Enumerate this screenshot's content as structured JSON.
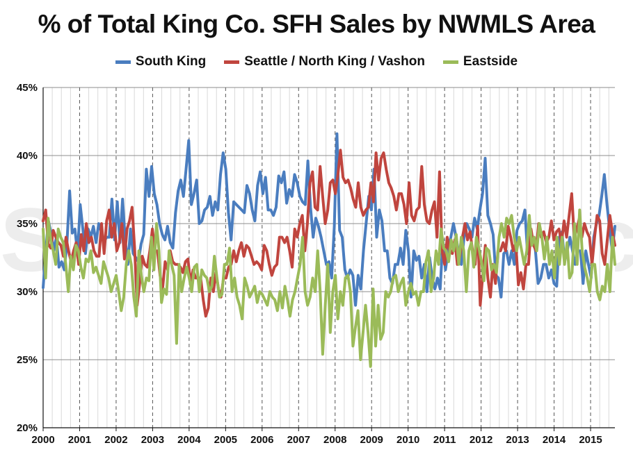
{
  "chart_data": {
    "type": "line",
    "title": "% of Total King Co. SFH Sales by NWMLS Area",
    "xlabel": "",
    "ylabel": "",
    "ylim": [
      0.2,
      0.45
    ],
    "y_ticks": [
      "20%",
      "25%",
      "30%",
      "35%",
      "40%",
      "45%"
    ],
    "y_tick_values": [
      0.2,
      0.25,
      0.3,
      0.35,
      0.4,
      0.45
    ],
    "x_ticks": [
      "2000",
      "2001",
      "2002",
      "2003",
      "2004",
      "2005",
      "2006",
      "2007",
      "2008",
      "2009",
      "2010",
      "2011",
      "2012",
      "2013",
      "2014",
      "2015"
    ],
    "x_range": [
      "2000-01",
      "2015-08"
    ],
    "frequency": "monthly",
    "grid": true,
    "legend_position": "top",
    "watermark": "SeattleBubble.com",
    "series": [
      {
        "name": "South King",
        "color": "#4a7dbf",
        "values": [
          0.303,
          0.33,
          0.352,
          0.343,
          0.33,
          0.34,
          0.318,
          0.322,
          0.316,
          0.336,
          0.374,
          0.343,
          0.346,
          0.328,
          0.364,
          0.346,
          0.328,
          0.346,
          0.34,
          0.348,
          0.336,
          0.35,
          0.344,
          0.337,
          0.34,
          0.34,
          0.368,
          0.338,
          0.366,
          0.336,
          0.368,
          0.338,
          0.32,
          0.346,
          0.328,
          0.325,
          0.322,
          0.335,
          0.342,
          0.39,
          0.37,
          0.392,
          0.372,
          0.364,
          0.35,
          0.342,
          0.338,
          0.348,
          0.336,
          0.332,
          0.358,
          0.374,
          0.382,
          0.37,
          0.39,
          0.411,
          0.364,
          0.372,
          0.382,
          0.35,
          0.352,
          0.36,
          0.362,
          0.37,
          0.356,
          0.366,
          0.36,
          0.386,
          0.402,
          0.39,
          0.358,
          0.338,
          0.366,
          0.364,
          0.362,
          0.36,
          0.358,
          0.378,
          0.372,
          0.36,
          0.352,
          0.378,
          0.388,
          0.372,
          0.384,
          0.36,
          0.36,
          0.356,
          0.362,
          0.385,
          0.38,
          0.388,
          0.365,
          0.375,
          0.37,
          0.386,
          0.38,
          0.37,
          0.366,
          0.364,
          0.396,
          0.362,
          0.34,
          0.354,
          0.348,
          0.34,
          0.33,
          0.32,
          0.322,
          0.31,
          0.348,
          0.416,
          0.345,
          0.34,
          0.316,
          0.31,
          0.316,
          0.312,
          0.29,
          0.312,
          0.302,
          0.33,
          0.35,
          0.37,
          0.36,
          0.39,
          0.34,
          0.36,
          0.352,
          0.33,
          0.33,
          0.31,
          0.306,
          0.32,
          0.32,
          0.332,
          0.32,
          0.345,
          0.33,
          0.296,
          0.33,
          0.323,
          0.326,
          0.31,
          0.32,
          0.3,
          0.325,
          0.31,
          0.302,
          0.31,
          0.302,
          0.338,
          0.316,
          0.33,
          0.34,
          0.35,
          0.34,
          0.328,
          0.32,
          0.34,
          0.35,
          0.346,
          0.34,
          0.354,
          0.346,
          0.36,
          0.372,
          0.398,
          0.356,
          0.35,
          0.342,
          0.312,
          0.31,
          0.296,
          0.328,
          0.33,
          0.32,
          0.33,
          0.32,
          0.345,
          0.35,
          0.352,
          0.36,
          0.328,
          0.34,
          0.34,
          0.33,
          0.306,
          0.31,
          0.32,
          0.32,
          0.31,
          0.316,
          0.306,
          0.304,
          0.34,
          0.344,
          0.322,
          0.33,
          0.34,
          0.33,
          0.32,
          0.33,
          0.33,
          0.306,
          0.33,
          0.32,
          0.31,
          0.34,
          0.35,
          0.356,
          0.37,
          0.386,
          0.364,
          0.346,
          0.33,
          0.348
        ]
      },
      {
        "name": "Seattle / North King / Vashon",
        "color": "#c0453e",
        "values": [
          0.352,
          0.36,
          0.335,
          0.332,
          0.345,
          0.34,
          0.336,
          0.334,
          0.326,
          0.34,
          0.33,
          0.322,
          0.33,
          0.336,
          0.32,
          0.342,
          0.33,
          0.35,
          0.336,
          0.34,
          0.33,
          0.326,
          0.326,
          0.35,
          0.328,
          0.352,
          0.36,
          0.34,
          0.35,
          0.33,
          0.336,
          0.35,
          0.324,
          0.346,
          0.352,
          0.362,
          0.332,
          0.29,
          0.306,
          0.326,
          0.32,
          0.318,
          0.33,
          0.346,
          0.33,
          0.33,
          0.312,
          0.302,
          0.322,
          0.316,
          0.33,
          0.322,
          0.32,
          0.32,
          0.318,
          0.314,
          0.322,
          0.324,
          0.306,
          0.316,
          0.31,
          0.31,
          0.31,
          0.294,
          0.282,
          0.288,
          0.31,
          0.3,
          0.314,
          0.302,
          0.296,
          0.31,
          0.31,
          0.318,
          0.32,
          0.33,
          0.322,
          0.33,
          0.336,
          0.326,
          0.334,
          0.332,
          0.326,
          0.32,
          0.322,
          0.32,
          0.316,
          0.334,
          0.33,
          0.32,
          0.312,
          0.318,
          0.32,
          0.34,
          0.34,
          0.336,
          0.34,
          0.33,
          0.318,
          0.346,
          0.34,
          0.35,
          0.356,
          0.33,
          0.35,
          0.38,
          0.388,
          0.362,
          0.36,
          0.392,
          0.37,
          0.35,
          0.36,
          0.38,
          0.382,
          0.372,
          0.386,
          0.404,
          0.384,
          0.38,
          0.382,
          0.376,
          0.368,
          0.362,
          0.38,
          0.362,
          0.356,
          0.36,
          0.362,
          0.38,
          0.366,
          0.402,
          0.382,
          0.398,
          0.402,
          0.39,
          0.38,
          0.376,
          0.37,
          0.36,
          0.372,
          0.372,
          0.364,
          0.35,
          0.38,
          0.356,
          0.352,
          0.36,
          0.362,
          0.392,
          0.364,
          0.352,
          0.35,
          0.36,
          0.366,
          0.34,
          0.388,
          0.33,
          0.32,
          0.34,
          0.33,
          0.328,
          0.338,
          0.32,
          0.326,
          0.34,
          0.35,
          0.338,
          0.344,
          0.33,
          0.32,
          0.348,
          0.29,
          0.312,
          0.334,
          0.31,
          0.296,
          0.32,
          0.306,
          0.33,
          0.33,
          0.336,
          0.33,
          0.348,
          0.34,
          0.33,
          0.336,
          0.305,
          0.314,
          0.302,
          0.32,
          0.32,
          0.346,
          0.334,
          0.33,
          0.35,
          0.34,
          0.344,
          0.336,
          0.34,
          0.352,
          0.338,
          0.344,
          0.346,
          0.336,
          0.352,
          0.34,
          0.356,
          0.372,
          0.34,
          0.346,
          0.354,
          0.34,
          0.35,
          0.344,
          0.34,
          0.32,
          0.34,
          0.356,
          0.352,
          0.328,
          0.32,
          0.338,
          0.356,
          0.344,
          0.334
        ]
      },
      {
        "name": "Eastside",
        "color": "#9bbb59",
        "values": [
          0.346,
          0.31,
          0.354,
          0.338,
          0.33,
          0.32,
          0.346,
          0.34,
          0.336,
          0.32,
          0.3,
          0.326,
          0.316,
          0.334,
          0.33,
          0.318,
          0.31,
          0.324,
          0.322,
          0.33,
          0.314,
          0.318,
          0.312,
          0.306,
          0.322,
          0.316,
          0.31,
          0.3,
          0.306,
          0.312,
          0.3,
          0.286,
          0.296,
          0.32,
          0.33,
          0.32,
          0.296,
          0.282,
          0.33,
          0.312,
          0.3,
          0.31,
          0.308,
          0.34,
          0.316,
          0.35,
          0.33,
          0.292,
          0.302,
          0.298,
          0.33,
          0.32,
          0.312,
          0.262,
          0.32,
          0.3,
          0.31,
          0.318,
          0.31,
          0.3,
          0.318,
          0.32,
          0.3,
          0.316,
          0.312,
          0.31,
          0.3,
          0.304,
          0.326,
          0.31,
          0.296,
          0.298,
          0.32,
          0.32,
          0.332,
          0.3,
          0.31,
          0.296,
          0.29,
          0.28,
          0.31,
          0.304,
          0.296,
          0.3,
          0.304,
          0.292,
          0.3,
          0.298,
          0.294,
          0.29,
          0.3,
          0.296,
          0.294,
          0.286,
          0.3,
          0.288,
          0.304,
          0.294,
          0.282,
          0.294,
          0.3,
          0.31,
          0.32,
          0.34,
          0.3,
          0.29,
          0.296,
          0.31,
          0.3,
          0.33,
          0.3,
          0.254,
          0.29,
          0.32,
          0.27,
          0.3,
          0.312,
          0.28,
          0.3,
          0.29,
          0.31,
          0.312,
          0.3,
          0.26,
          0.274,
          0.286,
          0.25,
          0.27,
          0.29,
          0.27,
          0.245,
          0.302,
          0.26,
          0.29,
          0.265,
          0.27,
          0.3,
          0.296,
          0.3,
          0.31,
          0.312,
          0.3,
          0.306,
          0.31,
          0.29,
          0.3,
          0.306,
          0.298,
          0.3,
          0.29,
          0.3,
          0.3,
          0.322,
          0.33,
          0.3,
          0.31,
          0.33,
          0.32,
          0.346,
          0.332,
          0.33,
          0.322,
          0.338,
          0.33,
          0.342,
          0.32,
          0.34,
          0.33,
          0.3,
          0.33,
          0.336,
          0.318,
          0.34,
          0.332,
          0.322,
          0.308,
          0.332,
          0.33,
          0.316,
          0.32,
          0.314,
          0.34,
          0.35,
          0.34,
          0.354,
          0.35,
          0.356,
          0.34,
          0.33,
          0.34,
          0.33,
          0.32,
          0.33,
          0.356,
          0.334,
          0.34,
          0.33,
          0.35,
          0.34,
          0.324,
          0.34,
          0.32,
          0.33,
          0.31,
          0.34,
          0.32,
          0.34,
          0.32,
          0.336,
          0.31,
          0.314,
          0.35,
          0.32,
          0.36,
          0.33,
          0.318,
          0.31,
          0.3,
          0.32,
          0.32,
          0.3,
          0.294,
          0.304,
          0.3,
          0.32,
          0.3,
          0.34,
          0.32
        ]
      }
    ]
  }
}
